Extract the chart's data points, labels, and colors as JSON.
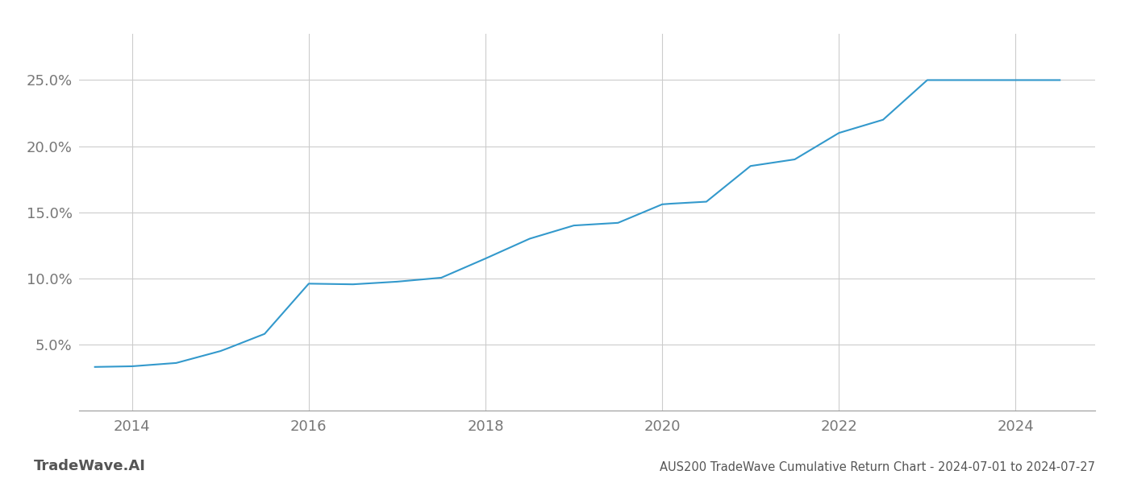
{
  "title": "AUS200 TradeWave Cumulative Return Chart - 2024-07-01 to 2024-07-27",
  "watermark": "TradeWave.AI",
  "line_color": "#3399cc",
  "background_color": "#ffffff",
  "grid_color": "#cccccc",
  "years": [
    2013.58,
    2014.0,
    2014.5,
    2015.0,
    2015.08,
    2015.5,
    2016.0,
    2016.5,
    2017.0,
    2017.5,
    2018.0,
    2018.5,
    2019.0,
    2019.5,
    2020.0,
    2020.1,
    2020.5,
    2021.0,
    2021.5,
    2022.0,
    2022.5,
    2023.0,
    2023.08,
    2023.5,
    2024.0,
    2024.5
  ],
  "values": [
    3.3,
    3.35,
    3.6,
    4.5,
    4.7,
    5.8,
    9.6,
    9.55,
    9.75,
    10.05,
    11.5,
    13.0,
    14.0,
    14.2,
    15.6,
    15.65,
    15.8,
    18.5,
    19.0,
    21.0,
    22.0,
    25.0,
    25.0,
    25.0,
    25.0,
    25.0
  ],
  "xlim": [
    2013.4,
    2024.9
  ],
  "ylim": [
    0,
    28.5
  ],
  "yticks": [
    5.0,
    10.0,
    15.0,
    20.0,
    25.0
  ],
  "ytick_labels": [
    "5.0%",
    "10.0%",
    "15.0%",
    "20.0%",
    "25.0%"
  ],
  "xticks": [
    2014,
    2016,
    2018,
    2020,
    2022,
    2024
  ],
  "title_fontsize": 10.5,
  "tick_fontsize": 13,
  "watermark_fontsize": 13,
  "line_width": 1.5
}
